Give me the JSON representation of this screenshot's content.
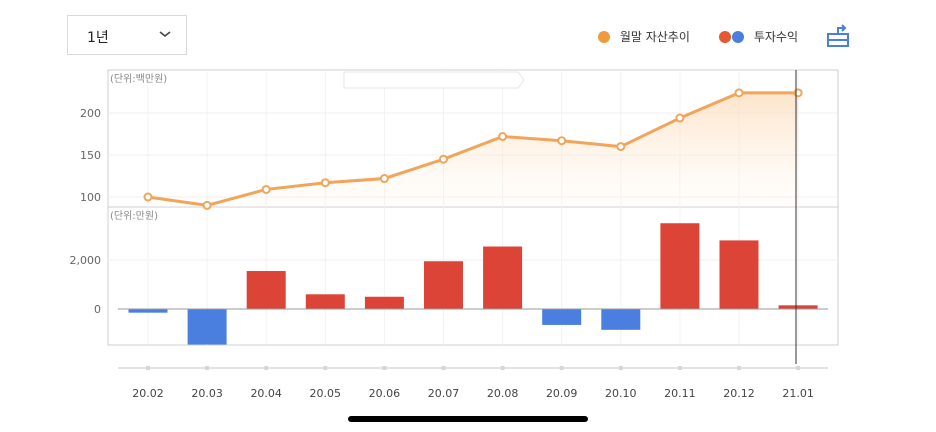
{
  "period": {
    "selected": "1년"
  },
  "legend": {
    "asset_trend": "월말 자산추이",
    "investment_return": "투자수익"
  },
  "colors": {
    "line": "#f0a55a",
    "positive": "#db4437",
    "negative": "#4a7fe0",
    "legend_dot": "#f09a3e"
  },
  "icons": {
    "chevron": "chevron-down-icon",
    "share": "share-icon"
  },
  "chart_data": [
    {
      "type": "area",
      "unit": "(단위:백만원)",
      "x": [
        "20.02",
        "20.03",
        "20.04",
        "20.05",
        "20.06",
        "20.07",
        "20.08",
        "20.09",
        "20.10",
        "20.11",
        "20.12",
        "21.01"
      ],
      "series": [
        {
          "name": "월말 자산추이",
          "values": [
            100,
            90,
            109,
            117,
            122,
            145,
            172,
            167,
            160,
            194,
            224,
            224
          ]
        }
      ],
      "yticks": [
        100,
        150,
        200
      ],
      "ylim": [
        85,
        235
      ]
    },
    {
      "type": "bar",
      "unit": "(단위:만원)",
      "x": [
        "20.02",
        "20.03",
        "20.04",
        "20.05",
        "20.06",
        "20.07",
        "20.08",
        "20.09",
        "20.10",
        "20.11",
        "20.12",
        "21.01"
      ],
      "series": [
        {
          "name": "투자수익",
          "values": [
            -150,
            -1450,
            1550,
            600,
            500,
            1950,
            2550,
            -650,
            -850,
            3500,
            2800,
            150
          ]
        }
      ],
      "yticks": [
        0,
        2000
      ],
      "ylim": [
        -1450,
        3900
      ]
    }
  ]
}
